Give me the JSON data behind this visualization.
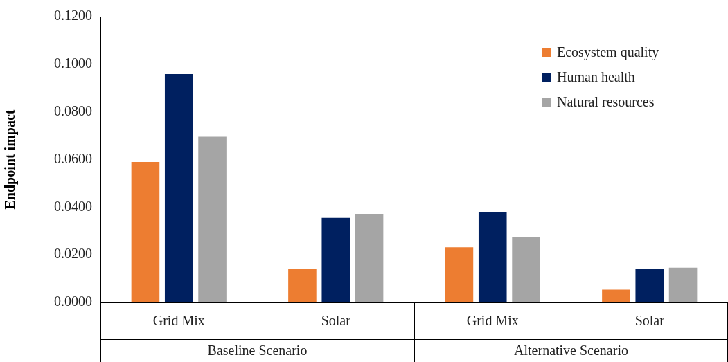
{
  "chart_data": {
    "type": "bar",
    "ylabel": "Endpoint impact",
    "categories": [
      "Grid Mix",
      "Solar",
      "Grid Mix",
      "Solar"
    ],
    "annotations": [
      "Baseline Scenario",
      "Alternative Scenario"
    ],
    "series": [
      {
        "name": "Ecosystem quality",
        "color": "#ed7d31",
        "values": [
          0.059,
          0.014,
          0.0232,
          0.0054
        ]
      },
      {
        "name": "Human health",
        "color": "#002060",
        "values": [
          0.0959,
          0.0355,
          0.0378,
          0.014
        ]
      },
      {
        "name": "Natural resources",
        "color": "#a5a5a5",
        "values": [
          0.0696,
          0.0372,
          0.0275,
          0.0146
        ]
      }
    ],
    "ylim": [
      0,
      0.12
    ],
    "yticks": [
      {
        "value": 0,
        "label": "0.0000"
      },
      {
        "value": 0.02,
        "label": "0.0200"
      },
      {
        "value": 0.04,
        "label": "0.0400"
      },
      {
        "value": 0.06,
        "label": "0.0600"
      },
      {
        "value": 0.08,
        "label": "0.0800"
      },
      {
        "value": 0.1,
        "label": "0.1000"
      },
      {
        "value": 0.12,
        "label": "0.1200"
      }
    ],
    "grid": false,
    "legend": "top right"
  }
}
